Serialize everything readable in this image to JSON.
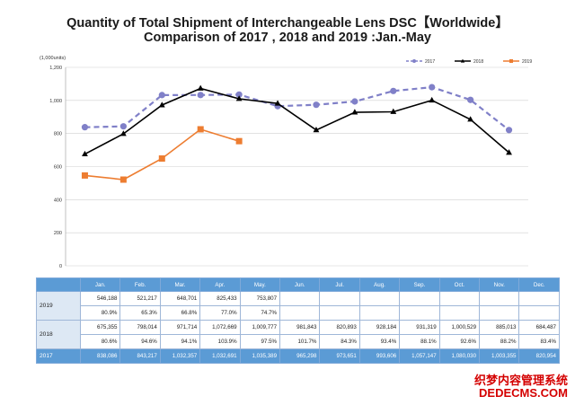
{
  "title_line1": "Quantity of Total Shipment of Interchangeable Lens DSC【Worldwide】",
  "title_line2": "Comparison of 2017 , 2018 and 2019 :Jan.-May",
  "chart_data": {
    "type": "line",
    "unit_label": "(1,000units)",
    "categories": [
      "Jan.",
      "Feb.",
      "Mar.",
      "Apr.",
      "May.",
      "Jun.",
      "Jul.",
      "Aug.",
      "Sep.",
      "Oct.",
      "Nov.",
      "Dec."
    ],
    "ylim": [
      0,
      1200
    ],
    "yticks": [
      0,
      200,
      400,
      600,
      800,
      "1,000",
      "1,200"
    ],
    "grid": true,
    "legend_position": "top-right",
    "series": [
      {
        "name": "2017",
        "color": "#8080c8",
        "style": "dashed",
        "marker": "circle",
        "values": [
          838.086,
          843.217,
          1032.357,
          1032.691,
          1035.389,
          965.298,
          973.651,
          993.606,
          1057.147,
          1080.03,
          1003.355,
          820.954
        ]
      },
      {
        "name": "2018",
        "color": "#000000",
        "style": "solid",
        "marker": "triangle",
        "values": [
          675.355,
          798.014,
          971.714,
          1072.669,
          1009.777,
          981.843,
          820.893,
          928.184,
          931.319,
          1000.529,
          885.013,
          684.487
        ]
      },
      {
        "name": "2019",
        "color": "#ed7d31",
        "style": "solid",
        "marker": "square",
        "values": [
          546.188,
          521.217,
          648.701,
          825.433,
          753.807,
          null,
          null,
          null,
          null,
          null,
          null,
          null
        ]
      }
    ]
  },
  "table": {
    "months": [
      "Jan.",
      "Feb.",
      "Mar.",
      "Apr.",
      "May.",
      "Jun.",
      "Jul.",
      "Aug.",
      "Sep.",
      "Oct.",
      "Nov.",
      "Dec."
    ],
    "y2019_label": "2019",
    "y2019_values": [
      "546,188",
      "521,217",
      "648,701",
      "825,433",
      "753,807",
      "",
      "",
      "",
      "",
      "",
      "",
      ""
    ],
    "y2019_pct": [
      "80.9%",
      "65.3%",
      "66.8%",
      "77.0%",
      "74.7%",
      "",
      "",
      "",
      "",
      "",
      "",
      ""
    ],
    "y2018_label": "2018",
    "y2018_values": [
      "675,355",
      "798,014",
      "971,714",
      "1,072,669",
      "1,009,777",
      "981,843",
      "820,893",
      "928,184",
      "931,319",
      "1,000,529",
      "885,013",
      "684,487"
    ],
    "y2018_pct": [
      "80.6%",
      "94.6%",
      "94.1%",
      "103.9%",
      "97.5%",
      "101.7%",
      "84.3%",
      "93.4%",
      "88.1%",
      "92.6%",
      "88.2%",
      "83.4%"
    ],
    "y2017_label": "2017",
    "y2017_values": [
      "838,086",
      "843,217",
      "1,032,357",
      "1,032,691",
      "1,035,389",
      "965,298",
      "973,651",
      "993,606",
      "1,057,147",
      "1,080,030",
      "1,003,355",
      "820,954"
    ]
  },
  "watermark": {
    "line1": "织梦内容管理系统",
    "line2": "DEDECMS.COM"
  }
}
